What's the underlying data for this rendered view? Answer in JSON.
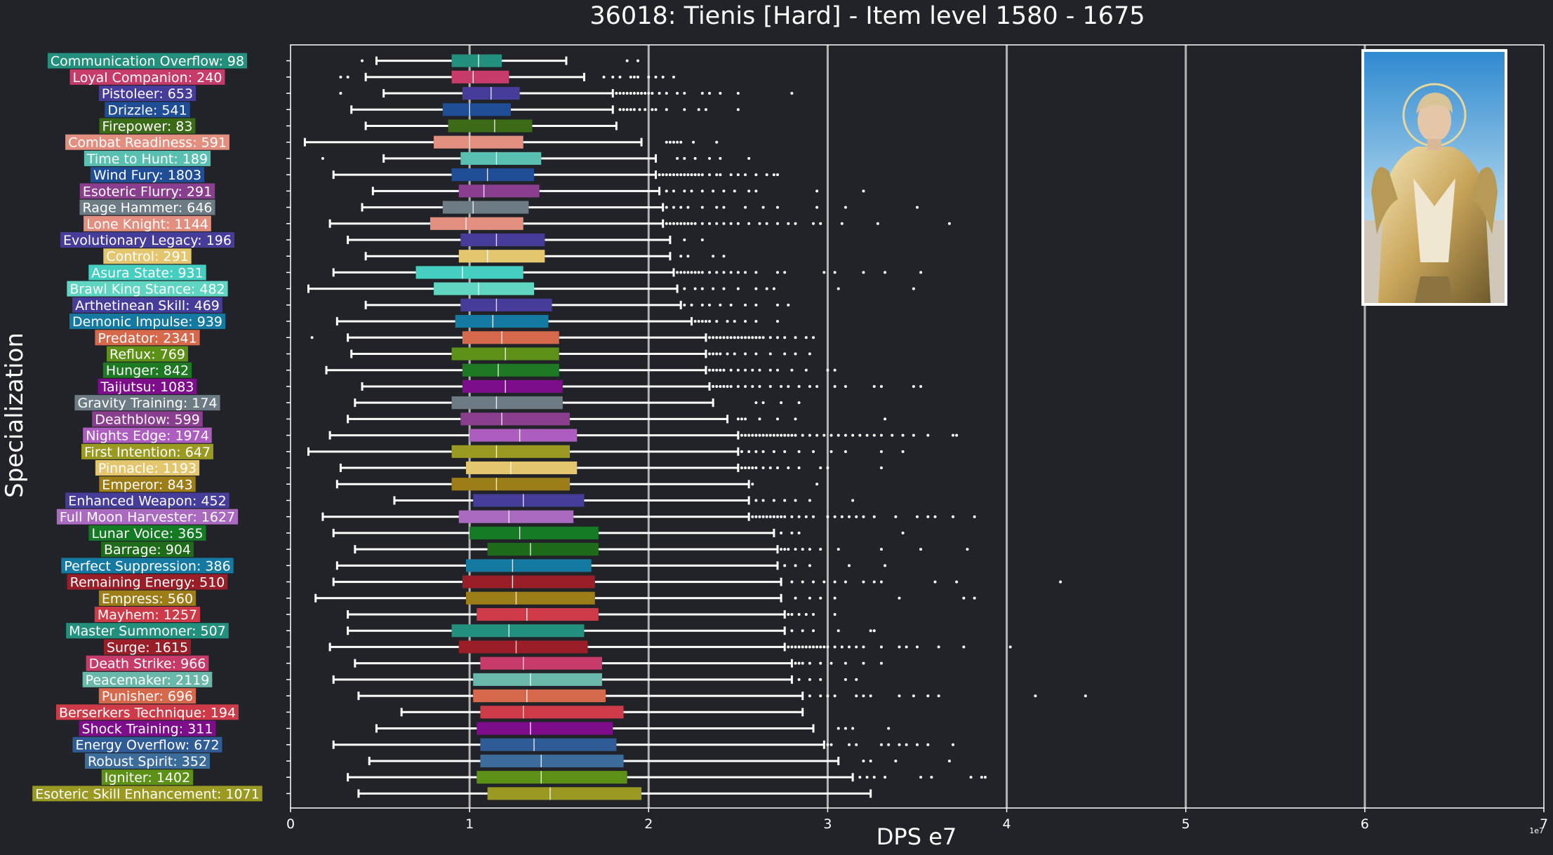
{
  "chart_data": {
    "type": "box",
    "title": "36018: Tienis [Hard] - Item level 1580 - 1675",
    "xlabel": "DPS e7",
    "ylabel": "Specialization",
    "offset_label": "1e7",
    "xlim": [
      0,
      7
    ],
    "xticks": [
      0,
      1,
      2,
      3,
      4,
      5,
      6,
      7
    ],
    "grid": "vertical",
    "colors": {
      "background": "#212328",
      "text": "#ffffff",
      "gridline": "#b4b4b4",
      "whisker": "#ffffff"
    },
    "series": [
      {
        "label": "Communication Overflow: 98",
        "color": "#23907d",
        "min": 0.48,
        "q1": 0.9,
        "median": 1.05,
        "q3": 1.18,
        "max": 1.54,
        "outliers": [
          0.4,
          1.88,
          1.94
        ]
      },
      {
        "label": "Loyal Companion: 240",
        "color": "#c73b6a",
        "min": 0.42,
        "q1": 0.9,
        "median": 1.02,
        "q3": 1.22,
        "max": 1.64,
        "outliers": [
          0.28,
          0.32,
          1.75,
          1.8,
          1.84,
          1.9,
          1.92,
          1.94,
          2.0,
          2.04,
          2.08,
          2.14
        ]
      },
      {
        "label": "Pistoleer: 653",
        "color": "#463c9a",
        "min": 0.52,
        "q1": 0.96,
        "median": 1.12,
        "q3": 1.28,
        "max": 1.8,
        "outliers": [
          0.28,
          1.82,
          1.84,
          1.86,
          1.88,
          1.9,
          1.92,
          1.94,
          1.96,
          1.98,
          2.0,
          2.02,
          2.06,
          2.1,
          2.16,
          2.2,
          2.3,
          2.34,
          2.4,
          2.5,
          2.8
        ]
      },
      {
        "label": "Drizzle: 541",
        "color": "#1f4e97",
        "min": 0.34,
        "q1": 0.85,
        "median": 1.0,
        "q3": 1.23,
        "max": 1.8,
        "outliers": [
          1.84,
          1.86,
          1.88,
          1.9,
          1.92,
          1.95,
          1.98,
          2.02,
          2.04,
          2.1,
          2.2,
          2.28,
          2.32,
          2.5
        ]
      },
      {
        "label": "Firepower: 83",
        "color": "#3c6b18",
        "min": 0.42,
        "q1": 0.88,
        "median": 1.14,
        "q3": 1.35,
        "max": 1.82,
        "outliers": []
      },
      {
        "label": "Combat Readiness: 591",
        "color": "#e28f80",
        "min": 0.08,
        "q1": 0.8,
        "median": 1.0,
        "q3": 1.3,
        "max": 1.96,
        "outliers": [
          2.1,
          2.12,
          2.14,
          2.16,
          2.18,
          2.25,
          2.38
        ]
      },
      {
        "label": "Time to Hunt: 189",
        "color": "#58bfb1",
        "min": 0.52,
        "q1": 0.95,
        "median": 1.15,
        "q3": 1.4,
        "max": 2.04,
        "outliers": [
          0.18,
          2.16,
          2.2,
          2.26,
          2.34,
          2.4,
          2.56
        ]
      },
      {
        "label": "Wind Fury: 1803",
        "color": "#1f4e97",
        "min": 0.24,
        "q1": 0.9,
        "median": 1.1,
        "q3": 1.36,
        "max": 2.04,
        "outliers": [
          2.06,
          2.08,
          2.1,
          2.12,
          2.14,
          2.16,
          2.18,
          2.2,
          2.22,
          2.24,
          2.26,
          2.28,
          2.3,
          2.34,
          2.38,
          2.4,
          2.46,
          2.5,
          2.54,
          2.6,
          2.66,
          2.7,
          2.72
        ]
      },
      {
        "label": "Esoteric Flurry: 291",
        "color": "#8a3e8e",
        "min": 0.46,
        "q1": 0.94,
        "median": 1.08,
        "q3": 1.39,
        "max": 2.06,
        "outliers": [
          2.1,
          2.14,
          2.2,
          2.24,
          2.3,
          2.36,
          2.42,
          2.48,
          2.56,
          2.6,
          2.94,
          3.2
        ]
      },
      {
        "label": "Rage Hammer: 646",
        "color": "#6d7c84",
        "min": 0.4,
        "q1": 0.85,
        "median": 1.02,
        "q3": 1.33,
        "max": 2.08,
        "outliers": [
          2.1,
          2.14,
          2.18,
          2.22,
          2.3,
          2.38,
          2.42,
          2.54,
          2.64,
          2.72,
          2.94,
          3.1,
          3.5
        ]
      },
      {
        "label": "Lone Knight: 1144",
        "color": "#e28f80",
        "min": 0.22,
        "q1": 0.78,
        "median": 0.98,
        "q3": 1.3,
        "max": 2.08,
        "outliers": [
          2.1,
          2.12,
          2.14,
          2.16,
          2.18,
          2.2,
          2.22,
          2.24,
          2.26,
          2.3,
          2.34,
          2.38,
          2.42,
          2.46,
          2.5,
          2.56,
          2.62,
          2.66,
          2.72,
          2.78,
          2.82,
          2.92,
          2.96,
          3.08,
          3.28,
          3.68
        ]
      },
      {
        "label": "Evolutionary Legacy: 196",
        "color": "#463c9a",
        "min": 0.32,
        "q1": 0.95,
        "median": 1.15,
        "q3": 1.42,
        "max": 2.12,
        "outliers": [
          2.2,
          2.3
        ]
      },
      {
        "label": "Control: 291",
        "color": "#e3c66e",
        "min": 0.42,
        "q1": 0.94,
        "median": 1.1,
        "q3": 1.42,
        "max": 2.12,
        "outliers": [
          2.18,
          2.22,
          2.36,
          2.42
        ]
      },
      {
        "label": "Asura State: 931",
        "color": "#45cfc1",
        "min": 0.24,
        "q1": 0.7,
        "median": 0.96,
        "q3": 1.3,
        "max": 2.14,
        "outliers": [
          2.16,
          2.18,
          2.2,
          2.22,
          2.24,
          2.26,
          2.28,
          2.3,
          2.34,
          2.38,
          2.42,
          2.46,
          2.5,
          2.54,
          2.6,
          2.72,
          2.76,
          2.98,
          3.04,
          3.2,
          3.32,
          3.52
        ]
      },
      {
        "label": "Brawl King Stance: 482",
        "color": "#5fd5c2",
        "min": 0.1,
        "q1": 0.8,
        "median": 1.05,
        "q3": 1.36,
        "max": 2.16,
        "outliers": [
          2.2,
          2.26,
          2.3,
          2.36,
          2.42,
          2.5,
          2.6,
          2.66,
          2.7,
          3.06,
          3.48
        ]
      },
      {
        "label": "Arthetinean Skill: 469",
        "color": "#463c9a",
        "min": 0.42,
        "q1": 0.95,
        "median": 1.15,
        "q3": 1.46,
        "max": 2.18,
        "outliers": [
          2.2,
          2.24,
          2.3,
          2.34,
          2.4,
          2.46,
          2.54,
          2.6,
          2.72,
          2.78
        ]
      },
      {
        "label": "Demonic Impulse: 939",
        "color": "#157aa1",
        "min": 0.26,
        "q1": 0.92,
        "median": 1.13,
        "q3": 1.44,
        "max": 2.24,
        "outliers": [
          2.26,
          2.28,
          2.3,
          2.32,
          2.34,
          2.38,
          2.44,
          2.48,
          2.54,
          2.6,
          2.72
        ]
      },
      {
        "label": "Predator: 2341",
        "color": "#d6684c",
        "min": 0.32,
        "q1": 0.96,
        "median": 1.18,
        "q3": 1.5,
        "max": 2.32,
        "outliers": [
          0.12,
          2.34,
          2.36,
          2.38,
          2.4,
          2.42,
          2.44,
          2.46,
          2.48,
          2.5,
          2.52,
          2.54,
          2.56,
          2.58,
          2.6,
          2.62,
          2.64,
          2.68,
          2.72,
          2.76,
          2.82,
          2.88,
          2.92
        ]
      },
      {
        "label": "Reflux: 769",
        "color": "#5d9016",
        "min": 0.34,
        "q1": 0.9,
        "median": 1.2,
        "q3": 1.5,
        "max": 2.32,
        "outliers": [
          2.34,
          2.36,
          2.38,
          2.4,
          2.44,
          2.48,
          2.54,
          2.6,
          2.68,
          2.76,
          2.82,
          2.9
        ]
      },
      {
        "label": "Hunger: 842",
        "color": "#1e7a22",
        "min": 0.2,
        "q1": 0.96,
        "median": 1.16,
        "q3": 1.5,
        "max": 2.32,
        "outliers": [
          2.34,
          2.36,
          2.38,
          2.4,
          2.42,
          2.46,
          2.5,
          2.54,
          2.58,
          2.62,
          2.68,
          2.72,
          2.8,
          2.88,
          3.0,
          3.04
        ]
      },
      {
        "label": "Taijutsu: 1083",
        "color": "#7e0d8c",
        "min": 0.4,
        "q1": 0.96,
        "median": 1.2,
        "q3": 1.52,
        "max": 2.34,
        "outliers": [
          2.36,
          2.38,
          2.4,
          2.42,
          2.44,
          2.46,
          2.5,
          2.54,
          2.58,
          2.62,
          2.68,
          2.74,
          2.78,
          2.84,
          2.9,
          2.94,
          3.04,
          3.1,
          3.26,
          3.3,
          3.48,
          3.52
        ]
      },
      {
        "label": "Gravity Training: 174",
        "color": "#6d7c84",
        "min": 0.36,
        "q1": 0.9,
        "median": 1.15,
        "q3": 1.52,
        "max": 2.36,
        "outliers": [
          2.6,
          2.64,
          2.74,
          2.84
        ]
      },
      {
        "label": "Deathblow: 599",
        "color": "#8a3e8e",
        "min": 0.32,
        "q1": 0.95,
        "median": 1.18,
        "q3": 1.56,
        "max": 2.44,
        "outliers": [
          2.5,
          2.52,
          2.54,
          2.62,
          2.72,
          2.82,
          3.32
        ]
      },
      {
        "label": "Nights Edge: 1974",
        "color": "#ad5cc0",
        "min": 0.22,
        "q1": 1.0,
        "median": 1.28,
        "q3": 1.6,
        "max": 2.5,
        "outliers": [
          2.52,
          2.54,
          2.56,
          2.58,
          2.6,
          2.62,
          2.64,
          2.66,
          2.68,
          2.7,
          2.72,
          2.74,
          2.76,
          2.78,
          2.8,
          2.82,
          2.86,
          2.9,
          2.94,
          2.98,
          3.02,
          3.06,
          3.1,
          3.14,
          3.18,
          3.22,
          3.26,
          3.3,
          3.36,
          3.42,
          3.48,
          3.56,
          3.7,
          3.72
        ]
      },
      {
        "label": "First Intention: 647",
        "color": "#9a9a22",
        "min": 0.1,
        "q1": 0.9,
        "median": 1.15,
        "q3": 1.56,
        "max": 2.5,
        "outliers": [
          2.52,
          2.56,
          2.6,
          2.64,
          2.7,
          2.76,
          2.84,
          2.92,
          3.02,
          3.1,
          3.3,
          3.42
        ]
      },
      {
        "label": "Pinnacle: 1193",
        "color": "#e3c66e",
        "min": 0.28,
        "q1": 0.98,
        "median": 1.23,
        "q3": 1.6,
        "max": 2.5,
        "outliers": [
          2.52,
          2.54,
          2.56,
          2.58,
          2.6,
          2.64,
          2.68,
          2.72,
          2.78,
          2.84,
          2.96,
          3.0,
          3.3
        ]
      },
      {
        "label": "Emperor: 843",
        "color": "#9c7d18",
        "min": 0.26,
        "q1": 0.9,
        "median": 1.15,
        "q3": 1.56,
        "max": 2.56,
        "outliers": [
          2.58,
          2.94
        ]
      },
      {
        "label": "Enhanced Weapon: 452",
        "color": "#463c9a",
        "min": 0.58,
        "q1": 1.02,
        "median": 1.3,
        "q3": 1.64,
        "max": 2.56,
        "outliers": [
          2.6,
          2.64,
          2.7,
          2.76,
          2.82,
          2.9,
          3.14
        ]
      },
      {
        "label": "Full Moon Harvester: 1627",
        "color": "#a96ac0",
        "min": 0.18,
        "q1": 0.94,
        "median": 1.22,
        "q3": 1.58,
        "max": 2.56,
        "outliers": [
          2.58,
          2.6,
          2.62,
          2.64,
          2.66,
          2.68,
          2.7,
          2.72,
          2.74,
          2.76,
          2.8,
          2.84,
          2.88,
          2.92,
          3.0,
          3.04,
          3.08,
          3.12,
          3.16,
          3.2,
          3.26,
          3.38,
          3.5,
          3.56,
          3.6,
          3.7,
          3.82
        ]
      },
      {
        "label": "Lunar Voice: 365",
        "color": "#157a24",
        "min": 0.24,
        "q1": 1.0,
        "median": 1.28,
        "q3": 1.72,
        "max": 2.7,
        "outliers": [
          2.74,
          2.8,
          2.84,
          3.42
        ]
      },
      {
        "label": "Barrage: 904",
        "color": "#1e6b1a",
        "min": 0.36,
        "q1": 1.1,
        "median": 1.34,
        "q3": 1.72,
        "max": 2.72,
        "outliers": [
          2.74,
          2.76,
          2.78,
          2.82,
          2.86,
          2.9,
          2.96,
          3.06,
          3.3,
          3.52,
          3.78
        ]
      },
      {
        "label": "Perfect Suppression: 386",
        "color": "#157aa1",
        "min": 0.26,
        "q1": 0.98,
        "median": 1.24,
        "q3": 1.68,
        "max": 2.72,
        "outliers": [
          2.76,
          2.82,
          2.9,
          3.12,
          3.32
        ]
      },
      {
        "label": "Remaining Energy: 510",
        "color": "#9a1e28",
        "min": 0.24,
        "q1": 0.96,
        "median": 1.24,
        "q3": 1.7,
        "max": 2.74,
        "outliers": [
          2.8,
          2.86,
          2.92,
          2.98,
          3.04,
          3.1,
          3.2,
          3.26,
          3.3,
          3.6,
          3.72,
          4.3
        ]
      },
      {
        "label": "Empress: 560",
        "color": "#9c7d18",
        "min": 0.14,
        "q1": 0.98,
        "median": 1.26,
        "q3": 1.7,
        "max": 2.74,
        "outliers": [
          2.82,
          2.9,
          2.96,
          3.04,
          3.4,
          3.76,
          3.82
        ]
      },
      {
        "label": "Mayhem: 1257",
        "color": "#cf3a48",
        "min": 0.32,
        "q1": 1.04,
        "median": 1.32,
        "q3": 1.72,
        "max": 2.76,
        "outliers": [
          2.78,
          2.8,
          2.84,
          2.88,
          2.92,
          3.04
        ]
      },
      {
        "label": "Master Summoner: 507",
        "color": "#23907d",
        "min": 0.32,
        "q1": 0.9,
        "median": 1.22,
        "q3": 1.64,
        "max": 2.76,
        "outliers": [
          2.8,
          2.86,
          2.92,
          3.06,
          3.24,
          3.26
        ]
      },
      {
        "label": "Surge: 1615",
        "color": "#9a1e28",
        "min": 0.22,
        "q1": 0.94,
        "median": 1.26,
        "q3": 1.66,
        "max": 2.76,
        "outliers": [
          2.78,
          2.8,
          2.82,
          2.84,
          2.86,
          2.88,
          2.9,
          2.92,
          2.94,
          2.96,
          2.98,
          3.0,
          3.04,
          3.08,
          3.12,
          3.16,
          3.2,
          3.3,
          3.4,
          3.44,
          3.5,
          3.62,
          3.76,
          4.02
        ]
      },
      {
        "label": "Death Strike: 966",
        "color": "#c73b6a",
        "min": 0.36,
        "q1": 1.06,
        "median": 1.3,
        "q3": 1.74,
        "max": 2.8,
        "outliers": [
          2.82,
          2.84,
          2.86,
          2.9,
          2.96,
          3.02,
          3.1,
          3.2,
          3.3
        ]
      },
      {
        "label": "Peacemaker: 2119",
        "color": "#6ab8a9",
        "min": 0.24,
        "q1": 1.02,
        "median": 1.34,
        "q3": 1.74,
        "max": 2.8,
        "outliers": [
          2.84,
          2.9,
          2.96,
          3.1,
          3.16
        ]
      },
      {
        "label": "Punisher: 696",
        "color": "#d6684c",
        "min": 0.38,
        "q1": 1.02,
        "median": 1.32,
        "q3": 1.76,
        "max": 2.86,
        "outliers": [
          2.9,
          2.96,
          3.0,
          3.04,
          3.16,
          3.2,
          3.24,
          3.4,
          3.48,
          3.56,
          3.62,
          4.16,
          4.44
        ]
      },
      {
        "label": "Berserkers Technique: 194",
        "color": "#cf3a48",
        "min": 0.62,
        "q1": 1.06,
        "median": 1.3,
        "q3": 1.86,
        "max": 2.86,
        "outliers": []
      },
      {
        "label": "Shock Training: 311",
        "color": "#7e0d8c",
        "min": 0.48,
        "q1": 1.04,
        "median": 1.34,
        "q3": 1.8,
        "max": 2.92,
        "outliers": [
          3.06,
          3.1,
          3.14,
          3.34
        ]
      },
      {
        "label": "Energy Overflow: 672",
        "color": "#2f5c96",
        "min": 0.24,
        "q1": 1.06,
        "median": 1.36,
        "q3": 1.82,
        "max": 2.98,
        "outliers": [
          3.0,
          3.02,
          3.12,
          3.16,
          3.3,
          3.34,
          3.4,
          3.44,
          3.5,
          3.56,
          3.7
        ]
      },
      {
        "label": "Robust Spirit: 352",
        "color": "#3c6c9a",
        "min": 0.44,
        "q1": 1.06,
        "median": 1.4,
        "q3": 1.86,
        "max": 3.06,
        "outliers": [
          3.2,
          3.24,
          3.38,
          3.68
        ]
      },
      {
        "label": "Igniter: 1402",
        "color": "#5d9016",
        "min": 0.32,
        "q1": 1.04,
        "median": 1.4,
        "q3": 1.88,
        "max": 3.14,
        "outliers": [
          3.18,
          3.22,
          3.26,
          3.32,
          3.52,
          3.58,
          3.8,
          3.86,
          3.88
        ]
      },
      {
        "label": "Esoteric Skill Enhancement: 1071",
        "color": "#9a9a22",
        "min": 0.38,
        "q1": 1.1,
        "median": 1.45,
        "q3": 1.96,
        "max": 3.24,
        "outliers": []
      }
    ]
  }
}
